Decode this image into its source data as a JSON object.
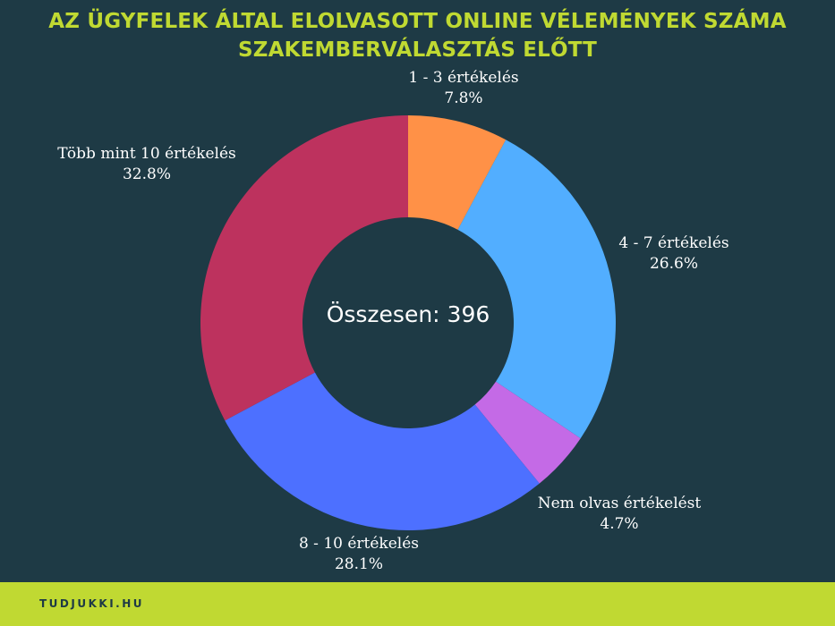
{
  "header": {
    "title_line1": "AZ ÜGYFELEK ÁLTAL ELOLVASOTT ONLINE VÉLEMÉNYEK SZÁMA",
    "title_line2": "SZAKEMBERVÁLASZTÁS ELŐTT"
  },
  "chart_data": {
    "type": "pie",
    "subtype": "donut",
    "title": "AZ ÜGYFELEK ÁLTAL ELOLVASOTT ONLINE VÉLEMÉNYEK SZÁMA SZAKEMBERVÁLASZTÁS ELŐTT",
    "center_label": "Összesen: 396",
    "slices": [
      {
        "label": "1 - 3 értékelés",
        "value": 7.8,
        "value_label": "7.8%",
        "color": "#ff9147"
      },
      {
        "label": "4 - 7 értékelés",
        "value": 26.6,
        "value_label": "26.6%",
        "color": "#52aeff"
      },
      {
        "label": "Nem olvas értékelést",
        "value": 4.7,
        "value_label": "4.7%",
        "color": "#c46ae6"
      },
      {
        "label": "8 - 10 értékelés",
        "value": 28.1,
        "value_label": "28.1%",
        "color": "#4d70ff"
      },
      {
        "label": "Több mint 10 értékelés",
        "value": 32.8,
        "value_label": "32.8%",
        "color": "#bd325e"
      }
    ]
  },
  "footer": {
    "brand": "TUDJUKKI.HU"
  },
  "colors": {
    "background": "#1e3a45",
    "accent": "#c0d932",
    "label_text": "#ffffff"
  }
}
